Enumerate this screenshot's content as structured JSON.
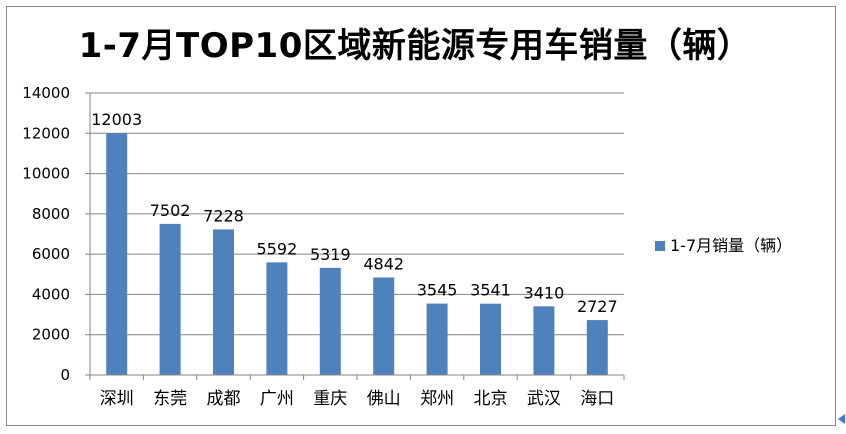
{
  "chart_data": {
    "type": "bar",
    "title": "1-7月TOP10区域新能源专用车销量（辆）",
    "categories": [
      "深圳",
      "东莞",
      "成都",
      "广州",
      "重庆",
      "佛山",
      "郑州",
      "北京",
      "武汉",
      "海口"
    ],
    "series": [
      {
        "name": "1-7月销量（辆）",
        "values": [
          12003,
          7502,
          7228,
          5592,
          5319,
          4842,
          3545,
          3541,
          3410,
          2727
        ]
      }
    ],
    "ylim": [
      0,
      14000
    ],
    "yticks": [
      0,
      2000,
      4000,
      6000,
      8000,
      10000,
      12000,
      14000
    ],
    "grid": true,
    "legend_position": "right",
    "bar_color": "#4F81BD"
  }
}
